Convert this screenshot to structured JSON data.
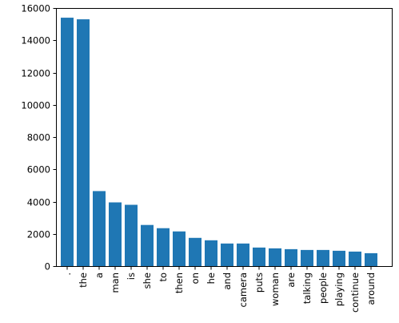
{
  "chart_data": {
    "type": "bar",
    "title": "",
    "xlabel": "",
    "ylabel": "",
    "ylim": [
      0,
      16000
    ],
    "yticks": [
      0,
      2000,
      4000,
      6000,
      8000,
      10000,
      12000,
      14000,
      16000
    ],
    "ytick_labels": [
      "0",
      "2000",
      "4000",
      "6000",
      "8000",
      "10000",
      "12000",
      "14000",
      "16000"
    ],
    "categories": [
      ".",
      "the",
      "a",
      "man",
      "is",
      "she",
      "to",
      "then",
      "on",
      "he",
      "and",
      "camera",
      "puts",
      "woman",
      "are",
      "talking",
      "people",
      "playing",
      "continue",
      "around"
    ],
    "values": [
      15400,
      15300,
      4650,
      3950,
      3800,
      2550,
      2350,
      2150,
      1750,
      1600,
      1400,
      1400,
      1150,
      1100,
      1050,
      1000,
      1000,
      950,
      900,
      800
    ],
    "bar_color": "#1f77b4",
    "grid": false,
    "legend": "none"
  }
}
